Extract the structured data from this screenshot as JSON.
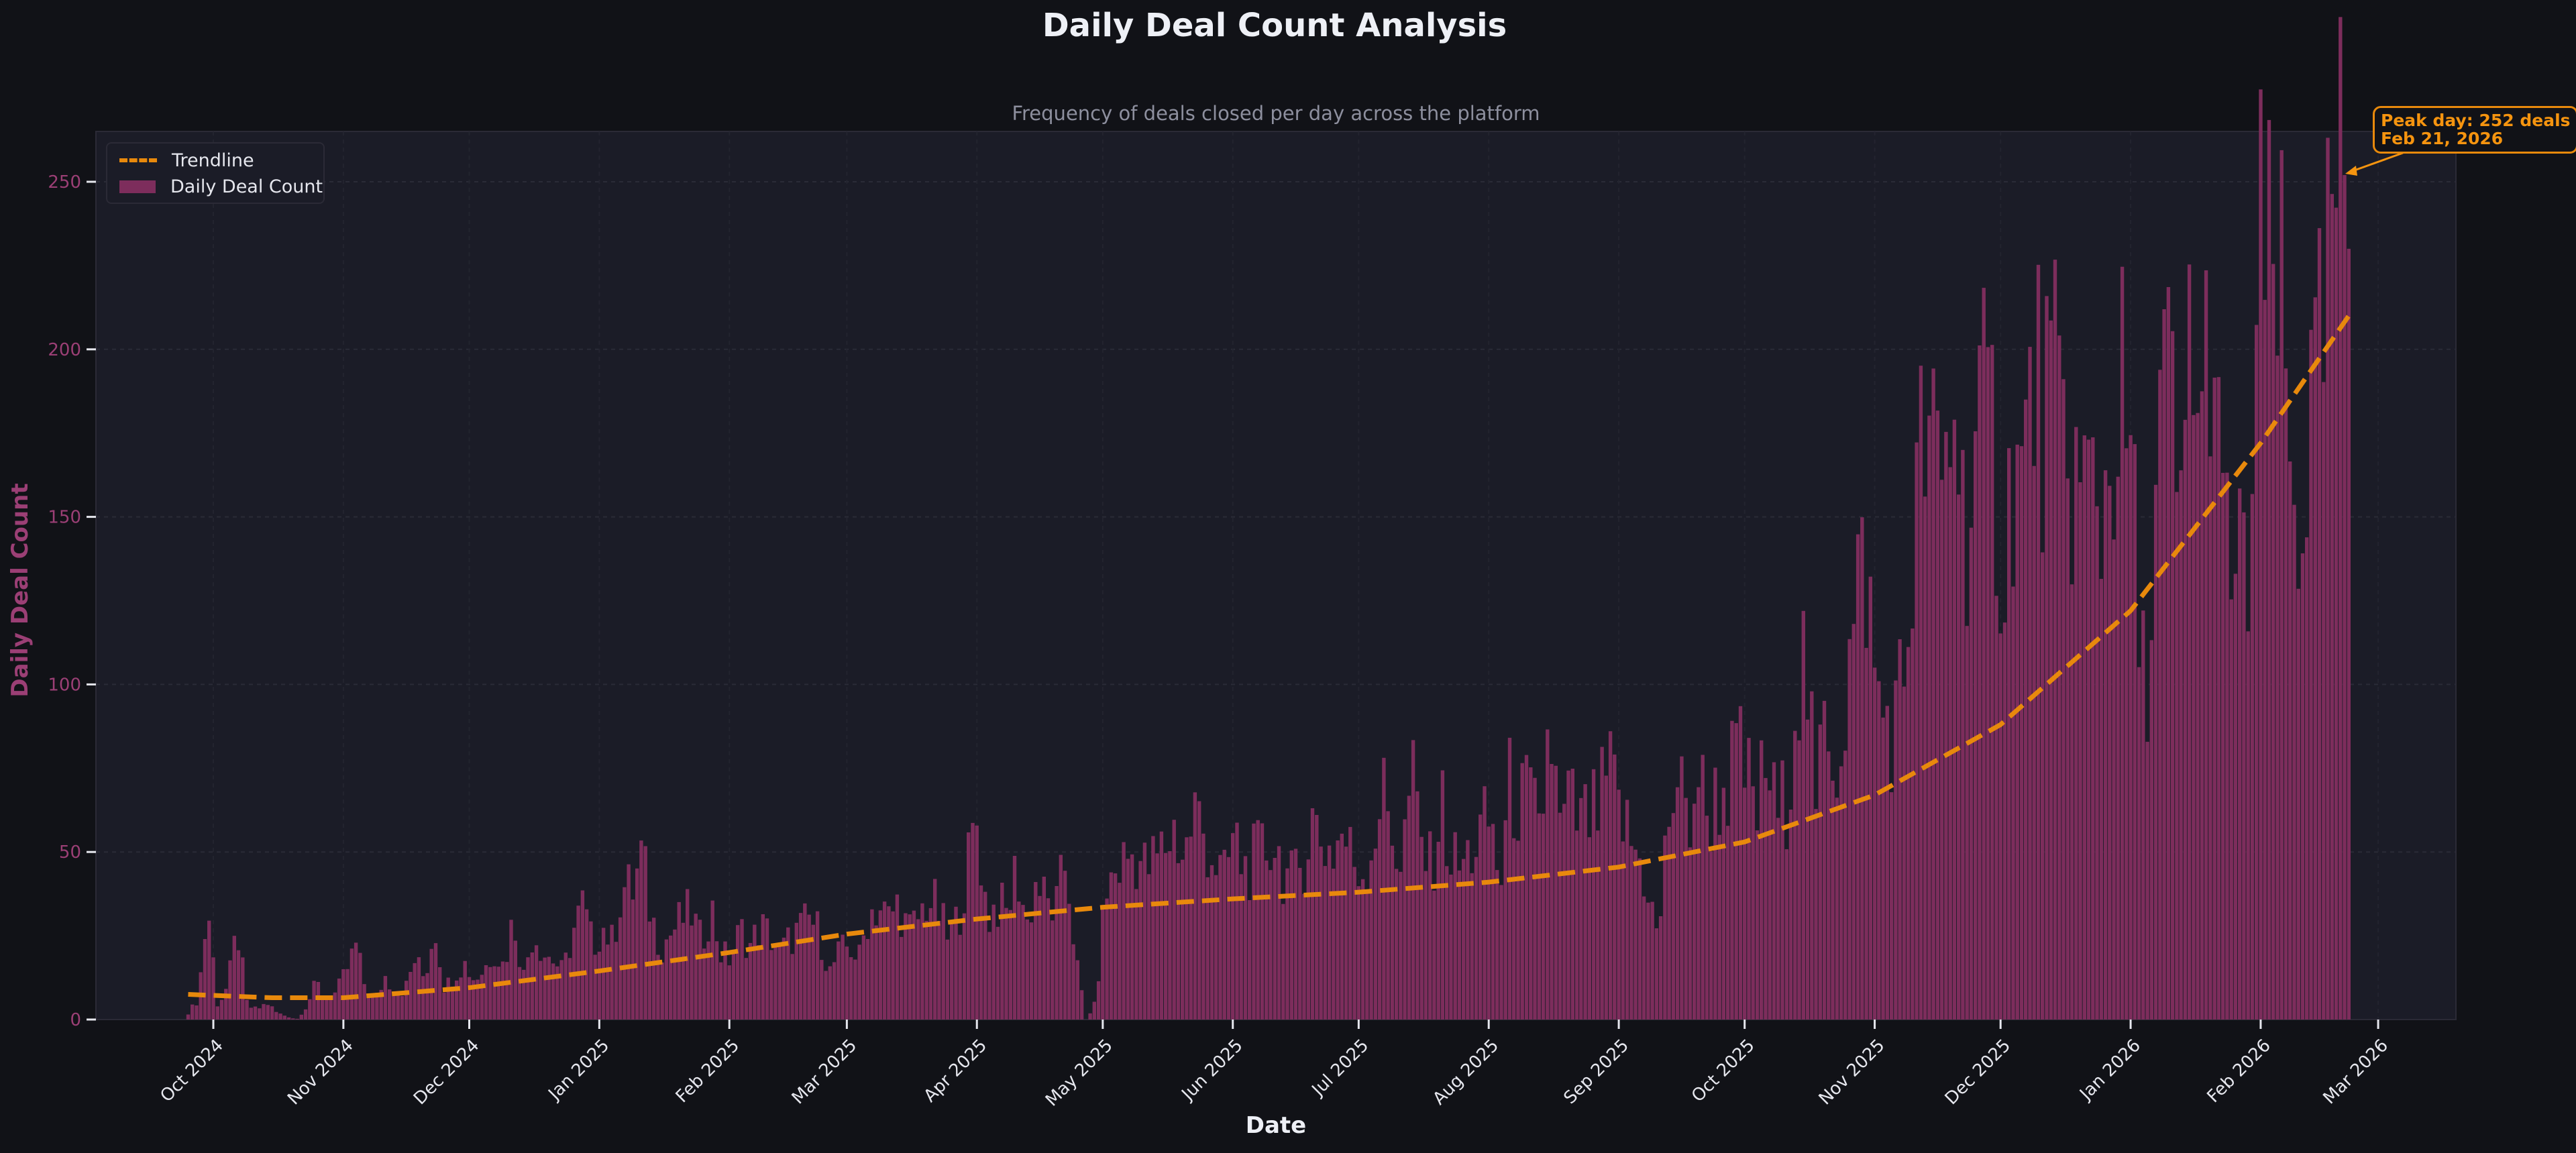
{
  "title": "Daily Deal Count Analysis",
  "subtitle": "Frequency of deals closed per day across the platform",
  "colors": {
    "background": "#111217",
    "plot_background": "#1b1c27",
    "bar": "#7d2d5c",
    "trendline": "#e8890c",
    "annotation": "#f5940f",
    "ytick": "#9b3f75",
    "xtick": "#e6e7ee"
  },
  "legend": {
    "items": [
      {
        "label": "Trendline",
        "icon": "dashed-line-icon"
      },
      {
        "label": "Daily Deal Count",
        "icon": "bar-swatch-icon"
      }
    ]
  },
  "annotation": {
    "line1": "Peak day: 252 deals",
    "line2": "Feb 21, 2026"
  },
  "chart_data": {
    "type": "bar",
    "title": "Daily Deal Count Analysis",
    "subtitle": "Frequency of deals closed per day across the platform",
    "xlabel": "Date",
    "ylabel": "Daily Deal Count",
    "ylim": [
      0,
      265
    ],
    "yticks": [
      0,
      50,
      100,
      150,
      200,
      250
    ],
    "xticks": [
      "Oct 2024",
      "Nov 2024",
      "Dec 2024",
      "Jan 2025",
      "Feb 2025",
      "Mar 2025",
      "Apr 2025",
      "May 2025",
      "Jun 2025",
      "Jul 2025",
      "Aug 2025",
      "Sep 2025",
      "Oct 2025",
      "Nov 2025",
      "Dec 2025",
      "Jan 2026",
      "Feb 2026",
      "Mar 2026"
    ],
    "grid": true,
    "legend_position": "upper left",
    "start_date": "2024-09-25",
    "end_date": "2026-02-22",
    "peak": {
      "date": "Feb 21, 2026",
      "value": 252
    },
    "series": [
      {
        "name": "Daily Deal Count",
        "type": "bar",
        "weekly_values": [
          2,
          6,
          34,
          4,
          10,
          27,
          4,
          3,
          5,
          2,
          1,
          0,
          4,
          11,
          6,
          8,
          14,
          22,
          9,
          6,
          13,
          8,
          9,
          18,
          12,
          29,
          9,
          14,
          17,
          12,
          15,
          21,
          16,
          31,
          13,
          27,
          20,
          18,
          14,
          26,
          34,
          22,
          28,
          23,
          40,
          38,
          49,
          30,
          22,
          26,
          30,
          32,
          23,
          34,
          20,
          18,
          27,
          22,
          28,
          25,
          20,
          24,
          27,
          30,
          26,
          14,
          20,
          22,
          18,
          32,
          34,
          30,
          35,
          26,
          30,
          36,
          33,
          24,
          30,
          45,
          60,
          30,
          35,
          31,
          46,
          28,
          42,
          34,
          33,
          48,
          18,
          0,
          5,
          38,
          44,
          48,
          50,
          45,
          47,
          52,
          57,
          48,
          63,
          55,
          48,
          41,
          55,
          45,
          47,
          50,
          54,
          45,
          40,
          48,
          60,
          53,
          50,
          56,
          48,
          44,
          52,
          68,
          57,
          46,
          73,
          53,
          44,
          65,
          48,
          45,
          50,
          55,
          60,
          40,
          70,
          64,
          66,
          53,
          91,
          55,
          65,
          58,
          60,
          62,
          74,
          62,
          55,
          48,
          40,
          22,
          60,
          72,
          56,
          75,
          60,
          67,
          70,
          79,
          72,
          62,
          77,
          60,
          66,
          101,
          107,
          58,
          100,
          75,
          96,
          120,
          140,
          99,
          90,
          88,
          104,
          147,
          175,
          162,
          158,
          190,
          147,
          165,
          176,
          173,
          131,
          169,
          158,
          192,
          182,
          186,
          170,
          164,
          154,
          160,
          150,
          173,
          184,
          161,
          99,
          117,
          185,
          186,
          138,
          221,
          164,
          221,
          146,
          140,
          130,
          137,
          228,
          216,
          221,
          161,
          147,
          175,
          190,
          221,
          252,
          230
        ],
        "note": "values sampled roughly every 2.5 days across the date range; trend rises from ~5/day in Oct 2024 to 200+ by Feb 2026"
      },
      {
        "name": "Trendline",
        "type": "line",
        "style": "dashed",
        "x": [
          "2024-09-25",
          "2024-10-15",
          "2024-11-01",
          "2024-12-01",
          "2025-01-01",
          "2025-02-01",
          "2025-03-01",
          "2025-04-01",
          "2025-05-01",
          "2025-06-01",
          "2025-07-01",
          "2025-08-01",
          "2025-09-01",
          "2025-10-01",
          "2025-11-01",
          "2025-12-01",
          "2026-01-01",
          "2026-02-01",
          "2026-02-22"
        ],
        "values": [
          7.5,
          6.5,
          6.5,
          9.5,
          14.5,
          20,
          25.5,
          30,
          33.5,
          36,
          38,
          41,
          45.5,
          53,
          67,
          88,
          122,
          172,
          210
        ]
      }
    ]
  }
}
